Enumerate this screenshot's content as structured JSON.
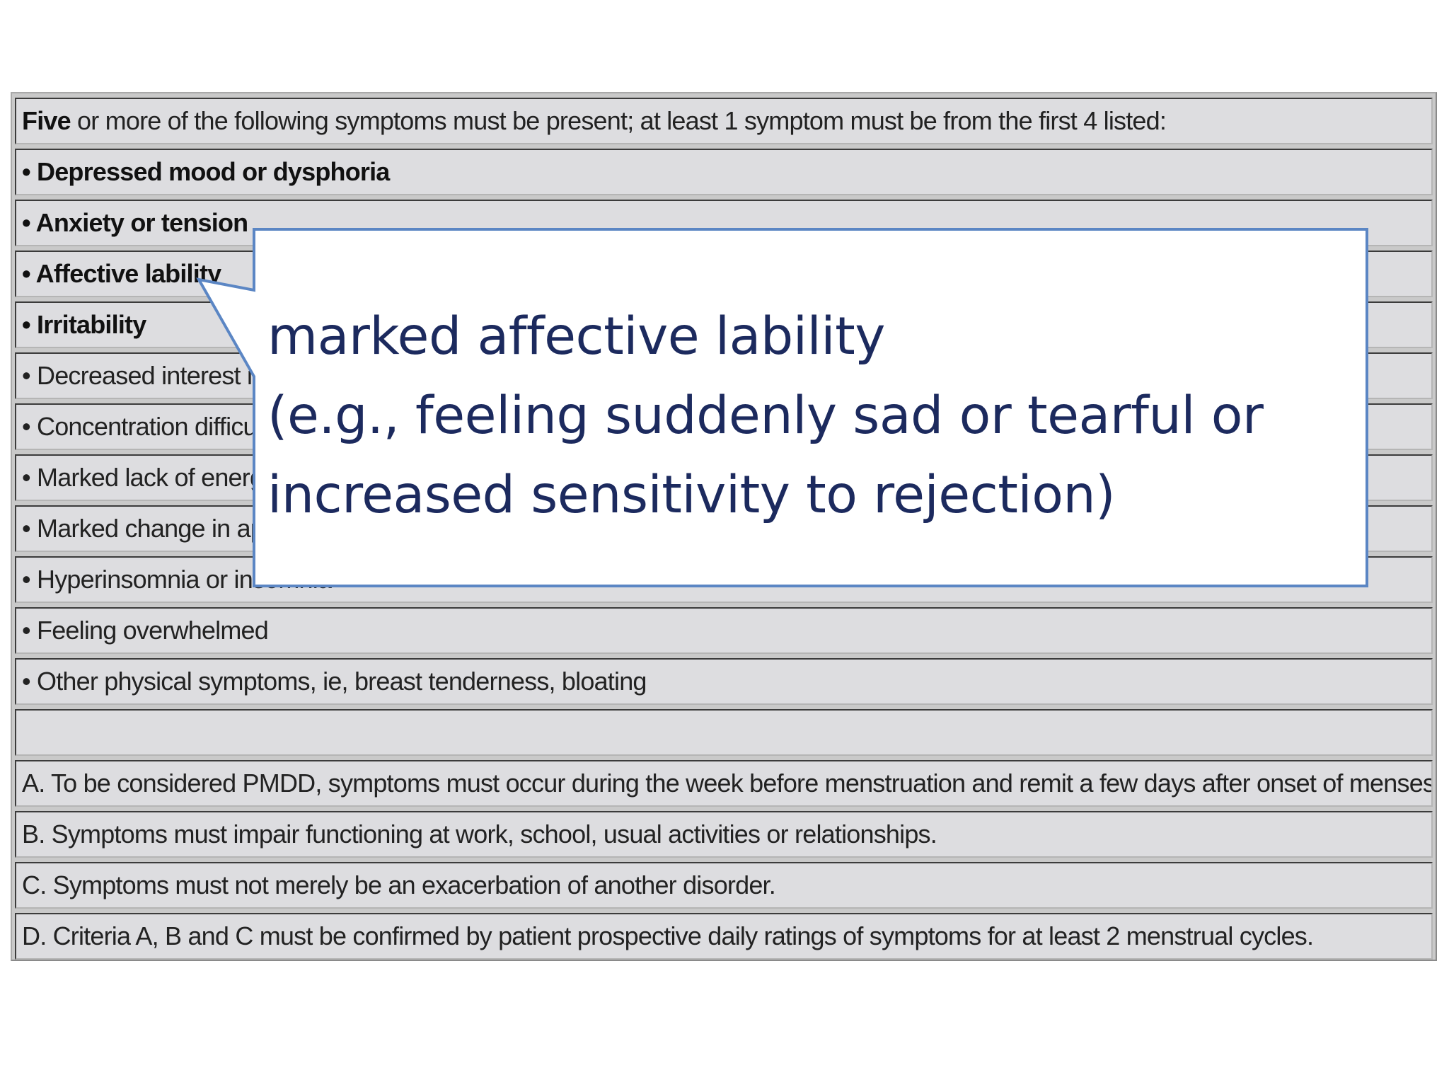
{
  "table": {
    "header": {
      "bold_word": "Five",
      "rest": " or more of the following symptoms must be present; at least 1 symptom must be from the first 4 listed:"
    },
    "symptoms": [
      {
        "text": "• Depressed mood or dysphoria",
        "bold": true
      },
      {
        "text": "• Anxiety or tension",
        "bold": true
      },
      {
        "text": "• Affective lability",
        "bold": true
      },
      {
        "text": "• Irritability",
        "bold": true
      },
      {
        "text": "• Decreased interest in usual activities",
        "bold": false
      },
      {
        "text": "• Concentration difficulties",
        "bold": false
      },
      {
        "text": "• Marked lack of energy",
        "bold": false
      },
      {
        "text": "• Marked change in appetite",
        "bold": false
      },
      {
        "text": "• Hyperinsomnia or insomnia",
        "bold": false
      },
      {
        "text": "• Feeling overwhelmed",
        "bold": false
      },
      {
        "text": "• Other physical symptoms, ie, breast tenderness, bloating",
        "bold": false
      }
    ],
    "criteria": [
      "A. To be considered PMDD, symptoms must occur during the week before menstruation and remit a few days after onset of menses.",
      "B. Symptoms must impair functioning at work, school, usual activities or relationships.",
      "C. Symptoms must not merely be an exacerbation of another disorder.",
      "D. Criteria A, B and C must be confirmed by patient prospective daily ratings of symptoms for at least 2 menstrual cycles."
    ]
  },
  "callout": {
    "lines": [
      "marked affective lability",
      "(e.g., feeling suddenly sad or tearful or",
      "increased sensitivity to rejection)"
    ],
    "border_color": "#5b86c4",
    "text_color": "#1c2a5e"
  }
}
